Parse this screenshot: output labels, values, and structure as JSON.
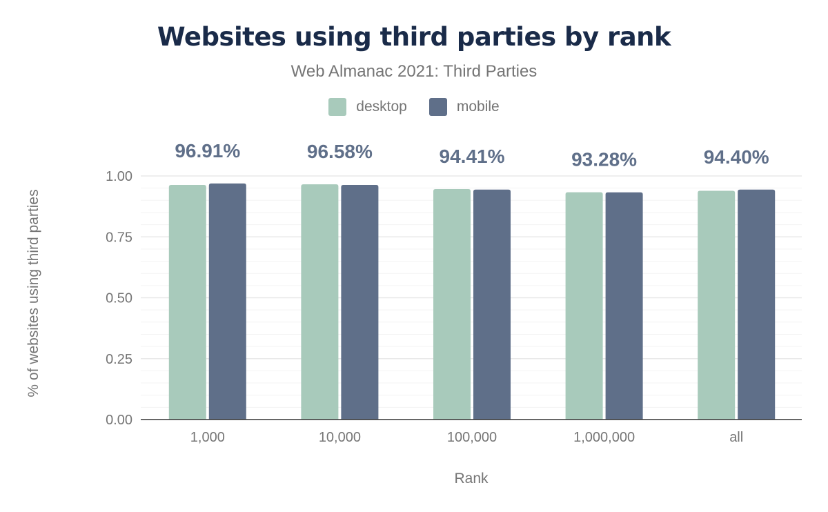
{
  "chart_data": {
    "type": "bar",
    "title": "Websites using third parties by rank",
    "subtitle": "Web Almanac 2021: Third Parties",
    "xlabel": "Rank",
    "ylabel": "% of websites using third parties",
    "categories": [
      "1,000",
      "10,000",
      "100,000",
      "1,000,000",
      "all"
    ],
    "series": [
      {
        "name": "desktop",
        "color": "#a8cabb",
        "values": [
          0.963,
          0.9658,
          0.946,
          0.933,
          0.939
        ]
      },
      {
        "name": "mobile",
        "color": "#5f6f89",
        "values": [
          0.9691,
          0.963,
          0.9441,
          0.9328,
          0.944
        ]
      }
    ],
    "data_labels": [
      "96.91%",
      "96.58%",
      "94.41%",
      "93.28%",
      "94.40%"
    ],
    "yticks": [
      "0.00",
      "0.25",
      "0.50",
      "0.75",
      "1.00"
    ],
    "ylim": [
      0,
      1
    ],
    "grid": true,
    "legend": "top-center"
  }
}
